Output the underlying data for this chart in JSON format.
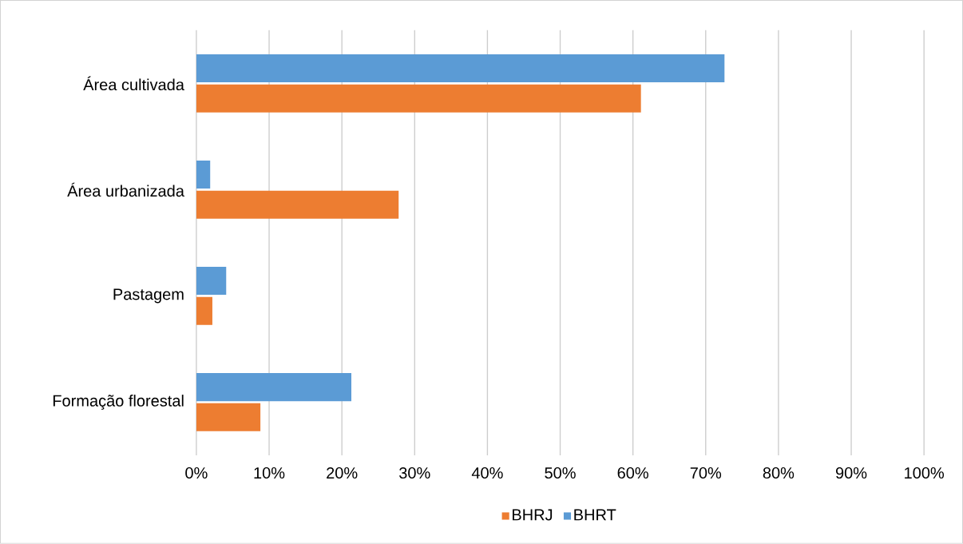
{
  "chart_data": {
    "type": "bar",
    "orientation": "horizontal",
    "categories": [
      "Área cultivada",
      "Área urbanizada",
      "Pastagem",
      "Formação florestal"
    ],
    "series": [
      {
        "name": "BHRJ",
        "color": "#ed7d31",
        "values": [
          61.1,
          27.8,
          2.2,
          8.8
        ]
      },
      {
        "name": "BHRT",
        "color": "#5b9bd5",
        "values": [
          72.6,
          1.9,
          4.1,
          21.3
        ]
      }
    ],
    "xlim": [
      0,
      100
    ],
    "xticks": [
      {
        "value": 0,
        "label": "0%"
      },
      {
        "value": 10,
        "label": "10%"
      },
      {
        "value": 20,
        "label": "20%"
      },
      {
        "value": 30,
        "label": "30%"
      },
      {
        "value": 40,
        "label": "40%"
      },
      {
        "value": 50,
        "label": "50%"
      },
      {
        "value": 60,
        "label": "60%"
      },
      {
        "value": 70,
        "label": "70%"
      },
      {
        "value": 80,
        "label": "80%"
      },
      {
        "value": 90,
        "label": "90%"
      },
      {
        "value": 100,
        "label": "100%"
      }
    ],
    "grid": "x",
    "legend": "bottom"
  }
}
